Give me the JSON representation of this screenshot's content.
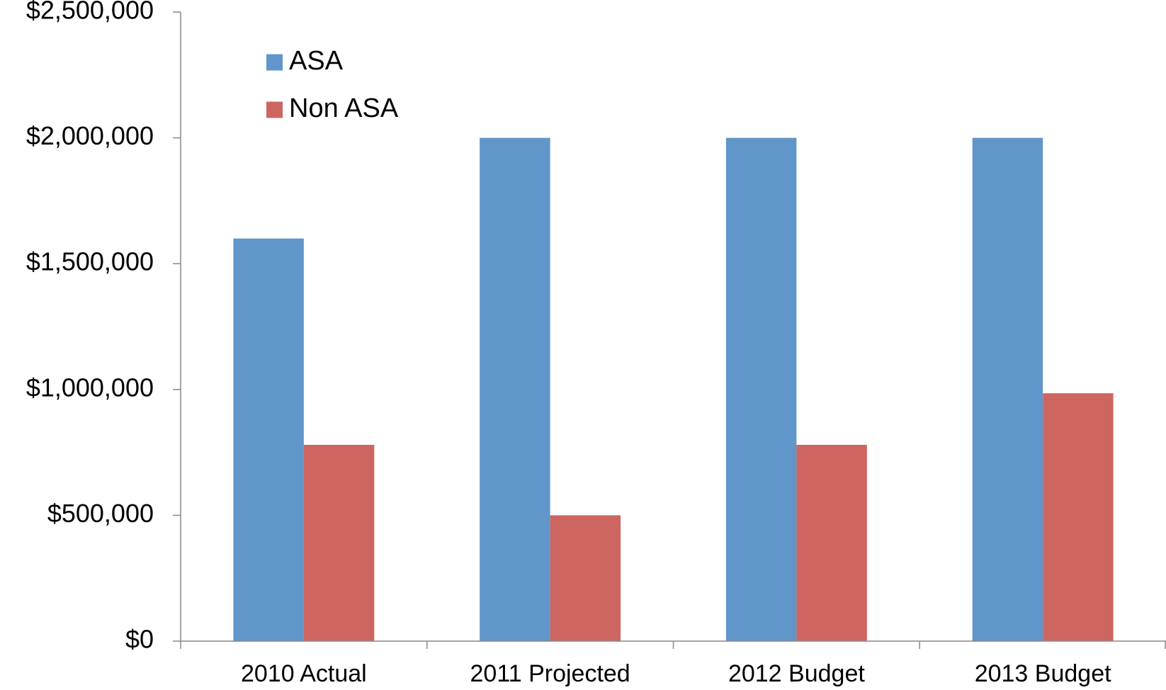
{
  "chart_data": {
    "type": "bar",
    "categories": [
      "2010 Actual",
      "2011 Projected",
      "2012 Budget",
      "2013 Budget"
    ],
    "series": [
      {
        "name": "ASA",
        "color": "#6096c9",
        "values": [
          1600000,
          2000000,
          2000000,
          2000000
        ]
      },
      {
        "name": "Non ASA",
        "color": "#cd6660",
        "values": [
          780000,
          500000,
          780000,
          985000
        ]
      }
    ],
    "ylim": [
      0,
      2500000
    ],
    "yticks": [
      {
        "value": 0,
        "label": "$0"
      },
      {
        "value": 500000,
        "label": "$500,000"
      },
      {
        "value": 1000000,
        "label": "$1,000,000"
      },
      {
        "value": 1500000,
        "label": "$1,500,000"
      },
      {
        "value": 2000000,
        "label": "$2,000,000"
      },
      {
        "value": 2500000,
        "label": "$2,500,000"
      }
    ],
    "grid": false,
    "legend": "top-left"
  }
}
